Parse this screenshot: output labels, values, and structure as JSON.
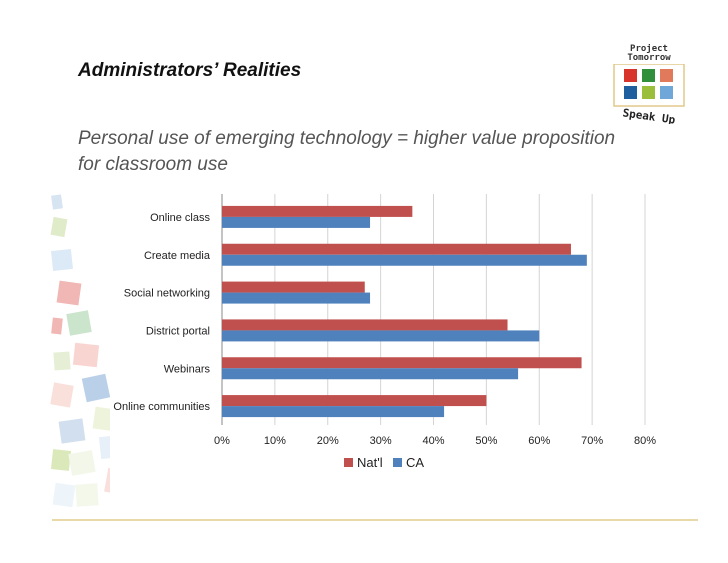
{
  "slide": {
    "title": "Administrators’ Realities",
    "subtitle": "Personal use of emerging technology = higher value proposition for classroom use"
  },
  "logo": {
    "line1": "Project",
    "line2": "Tomorrow",
    "tagline": "Speak Up",
    "tile_colors": [
      "#d7342c",
      "#2f8f3a",
      "#e07a5a",
      "#1f5f9e",
      "#9bbf3a",
      "#6fa8d8"
    ]
  },
  "chart_data": {
    "type": "bar",
    "orientation": "horizontal",
    "categories": [
      "Online class",
      "Create media",
      "Social networking",
      "District portal",
      "Webinars",
      "Online communities"
    ],
    "series": [
      {
        "name": "Nat'l",
        "color": "#c0504d",
        "values": [
          36,
          66,
          27,
          54,
          68,
          50
        ]
      },
      {
        "name": "CA",
        "color": "#4f81bd",
        "values": [
          28,
          69,
          28,
          60,
          56,
          42
        ]
      }
    ],
    "x_ticks": [
      "0%",
      "10%",
      "20%",
      "30%",
      "40%",
      "50%",
      "60%",
      "70%",
      "80%"
    ],
    "xlim": [
      0,
      80
    ],
    "grid": true,
    "legend_position": "bottom"
  }
}
